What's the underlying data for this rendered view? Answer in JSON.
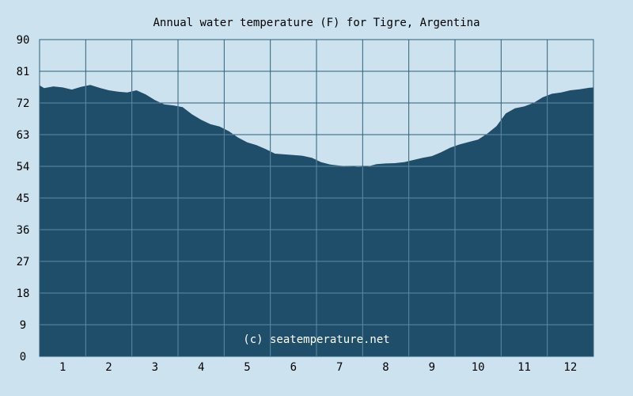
{
  "chart_data": {
    "type": "area",
    "title": "Annual water temperature (F) for Tigre, Argentina",
    "xlabel": "",
    "ylabel": "",
    "ylim": [
      0,
      90
    ],
    "yticks": [
      "0",
      "9",
      "18",
      "27",
      "36",
      "45",
      "54",
      "63",
      "72",
      "81",
      "90"
    ],
    "xlim": [
      0.5,
      12.5
    ],
    "xticks": [
      "1",
      "2",
      "3",
      "4",
      "5",
      "6",
      "7",
      "8",
      "9",
      "10",
      "11",
      "12"
    ],
    "grid": true,
    "series": [
      {
        "x": [
          0.5,
          0.6,
          0.8,
          1.0,
          1.2,
          1.4,
          1.6,
          1.8,
          2.0,
          2.2,
          2.4,
          2.6,
          2.8,
          3.0,
          3.2,
          3.4,
          3.6,
          3.8,
          4.0,
          4.2,
          4.4,
          4.6,
          4.8,
          5.0,
          5.2,
          5.4,
          5.6,
          5.8,
          6.0,
          6.2,
          6.4,
          6.6,
          6.8,
          7.0,
          7.2,
          7.4,
          7.6,
          7.8,
          8.0,
          8.2,
          8.4,
          8.6,
          8.8,
          9.0,
          9.2,
          9.4,
          9.6,
          9.8,
          10.0,
          10.2,
          10.4,
          10.6,
          10.8,
          11.0,
          11.2,
          11.4,
          11.6,
          11.8,
          12.0,
          12.2,
          12.4,
          12.5
        ],
        "values": [
          77.0,
          76.2,
          76.7,
          76.4,
          75.8,
          76.6,
          77.1,
          76.3,
          75.6,
          75.2,
          75.0,
          75.6,
          74.4,
          72.8,
          71.6,
          71.3,
          70.8,
          68.8,
          67.2,
          66.0,
          65.3,
          64.0,
          62.2,
          60.8,
          60.0,
          58.9,
          57.6,
          57.4,
          57.2,
          57.0,
          56.4,
          55.2,
          54.5,
          54.2,
          54.0,
          53.8,
          53.9,
          54.6,
          54.8,
          54.9,
          55.2,
          55.8,
          56.4,
          56.9,
          58.0,
          59.3,
          60.2,
          60.9,
          61.6,
          63.3,
          65.4,
          69.0,
          70.5,
          71.0,
          72.0,
          73.6,
          74.6,
          75.0,
          75.6,
          75.9,
          76.3,
          76.4
        ]
      }
    ],
    "colors": {
      "background": "#cce3ef",
      "area": "#1f4e6a",
      "grid_on_background": "#2f5d78",
      "grid_on_area": "#5f8aa3"
    }
  },
  "watermark": "(c) seatemperature.net"
}
